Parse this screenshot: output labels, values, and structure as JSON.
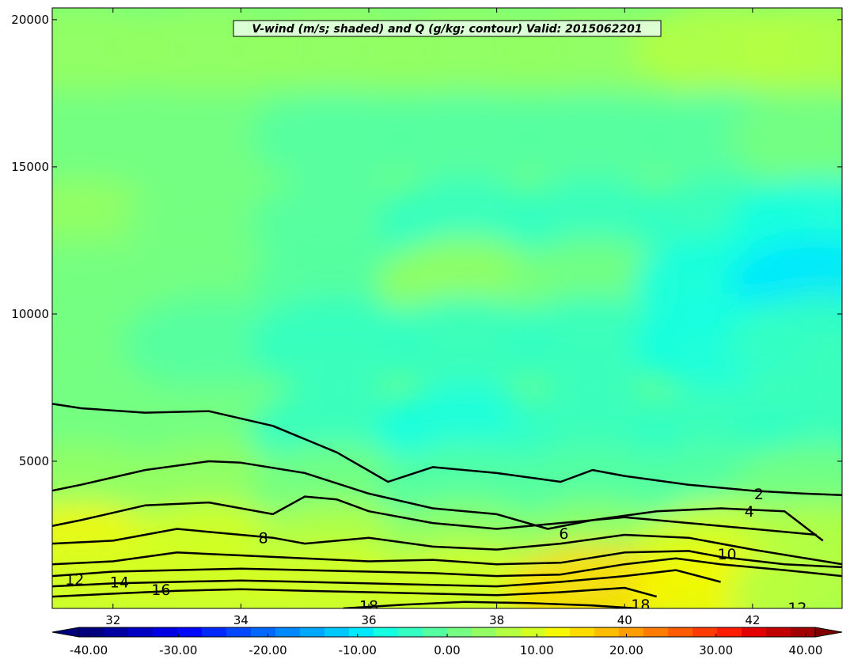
{
  "chart_data": {
    "type": "heatmap",
    "title": "V-wind (m/s; shaded) and Q (g/kg; contour) Valid: 2015062201",
    "xlabel": "",
    "ylabel": "",
    "xlim": [
      31.05,
      43.4
    ],
    "ylim": [
      0,
      20400
    ],
    "x_ticks": [
      "32",
      "34",
      "36",
      "38",
      "40",
      "42"
    ],
    "y_ticks": [
      "5000",
      "10000",
      "15000",
      "20000"
    ],
    "x_tick_values": [
      32,
      34,
      36,
      38,
      40,
      42
    ],
    "y_tick_values": [
      5000,
      10000,
      15000,
      20000
    ],
    "shaded_field": {
      "name": "V-wind (m/s)",
      "approx_rows": [
        {
          "y": 19000,
          "values": [
            3,
            3,
            3,
            4,
            5,
            6,
            7
          ]
        },
        {
          "y": 16000,
          "values": [
            2,
            1,
            -1,
            -2,
            -2,
            -1,
            0
          ]
        },
        {
          "y": 13000,
          "values": [
            4,
            2,
            -2,
            -3,
            -4,
            -5,
            -8
          ]
        },
        {
          "y": 11000,
          "values": [
            2,
            0,
            -1,
            3,
            0,
            -6,
            -10
          ]
        },
        {
          "y": 9000,
          "values": [
            2,
            -2,
            -5,
            -3,
            -4,
            -6,
            -4
          ]
        },
        {
          "y": 6000,
          "values": [
            1,
            0,
            -3,
            -6,
            -4,
            -5,
            -3
          ]
        },
        {
          "y": 4000,
          "values": [
            5,
            4,
            2,
            -1,
            -2,
            -1,
            0
          ]
        },
        {
          "y": 2000,
          "values": [
            12,
            9,
            6,
            4,
            5,
            8,
            6
          ]
        },
        {
          "y": 600,
          "values": [
            10,
            9,
            8,
            10,
            14,
            12,
            7
          ]
        }
      ],
      "x": [
        31.5,
        33.5,
        35.5,
        37.5,
        39.5,
        41.5,
        43
      ]
    },
    "colorbar": {
      "min": -40,
      "max": 40,
      "tick_labels": [
        "-40.00",
        "-30.00",
        "-20.00",
        "-10.00",
        "0.00",
        "10.00",
        "20.00",
        "30.00",
        "40.00"
      ],
      "colors": [
        "#00007f",
        "#0000a0",
        "#0000c1",
        "#0000e2",
        "#0008ff",
        "#0028ff",
        "#0048ff",
        "#0068ff",
        "#0088ff",
        "#00a8ff",
        "#00c8ff",
        "#00e8ff",
        "#14ffe2",
        "#34ffc2",
        "#54ffa2",
        "#74ff82",
        "#94ff62",
        "#b4ff42",
        "#d4ff22",
        "#f4f802",
        "#ffdc00",
        "#ffbc00",
        "#ff9c00",
        "#ff7c00",
        "#ff5c00",
        "#ff3c00",
        "#ff1c00",
        "#e20000",
        "#c10000",
        "#a00000"
      ]
    },
    "contour_levels": [
      "2",
      "4",
      "6",
      "8",
      "10",
      "12",
      "14",
      "16",
      "18"
    ],
    "contours": [
      {
        "level": 2,
        "x": [
          31.05,
          31.5,
          32.5,
          33.5,
          34.5,
          35.5,
          36.3,
          37,
          38,
          39,
          39.5,
          40,
          41,
          42,
          42.8,
          43.4
        ],
        "y": [
          6950,
          6800,
          6650,
          6700,
          6200,
          5300,
          4300,
          4800,
          4600,
          4300,
          4700,
          4500,
          4200,
          4000,
          3900,
          3850
        ]
      },
      {
        "level": 4,
        "x": [
          31.05,
          31.5,
          32.5,
          33.5,
          34,
          35,
          36,
          37,
          38,
          38.8,
          39.5,
          40.5,
          41.5,
          42.5,
          43.1
        ],
        "y": [
          4000,
          4200,
          4700,
          5000,
          4950,
          4600,
          3900,
          3400,
          3200,
          2700,
          3000,
          3300,
          3400,
          3300,
          2300
        ]
      },
      {
        "level": 6,
        "x": [
          31.05,
          31.5,
          32.5,
          33.5,
          34.5,
          35,
          35.5,
          36,
          37,
          38,
          39,
          40,
          41,
          42,
          43
        ],
        "y": [
          2800,
          3000,
          3500,
          3600,
          3200,
          3800,
          3700,
          3300,
          2900,
          2700,
          2900,
          3100,
          2900,
          2700,
          2500
        ]
      },
      {
        "level": 8,
        "x": [
          31.05,
          32,
          33,
          34,
          34.5,
          35,
          36,
          37,
          38,
          39,
          40,
          41,
          42,
          43.4
        ],
        "y": [
          2200,
          2300,
          2700,
          2500,
          2400,
          2200,
          2400,
          2100,
          2000,
          2200,
          2500,
          2400,
          2000,
          1500
        ]
      },
      {
        "level": 10,
        "x": [
          31.05,
          32,
          33,
          34,
          35,
          36,
          37,
          38,
          39,
          40,
          41,
          41.5,
          42.5,
          43.4
        ],
        "y": [
          1500,
          1600,
          1900,
          1800,
          1700,
          1600,
          1650,
          1500,
          1550,
          1900,
          1950,
          1750,
          1500,
          1400
        ]
      },
      {
        "level": 12,
        "x": [
          31.05,
          32,
          33,
          34,
          35,
          36,
          37,
          38,
          39,
          40,
          40.8,
          41.5,
          42.5,
          43.4
        ],
        "y": [
          1100,
          1250,
          1300,
          1350,
          1300,
          1250,
          1200,
          1100,
          1150,
          1500,
          1700,
          1500,
          1300,
          1100
        ]
      },
      {
        "level": 14,
        "x": [
          31.05,
          32,
          33,
          34,
          35,
          36,
          37,
          38,
          39,
          40,
          40.8,
          41.5
        ],
        "y": [
          750,
          850,
          900,
          950,
          900,
          850,
          800,
          750,
          900,
          1100,
          1300,
          900
        ]
      },
      {
        "level": 16,
        "x": [
          31.05,
          32,
          33,
          34,
          35,
          36,
          37,
          38,
          39,
          40,
          40.5
        ],
        "y": [
          400,
          500,
          600,
          650,
          600,
          550,
          500,
          450,
          550,
          700,
          400
        ]
      },
      {
        "level": 18,
        "x": [
          35.6,
          36.5,
          37.5,
          38.5,
          39.5,
          40.2
        ],
        "y": [
          0,
          120,
          220,
          180,
          100,
          0
        ]
      }
    ],
    "contour_label_positions": [
      {
        "text": "2",
        "x": 42.1,
        "y": 3900
      },
      {
        "text": "4",
        "x": 41.95,
        "y": 3300
      },
      {
        "text": "6",
        "x": 39.05,
        "y": 2550
      },
      {
        "text": "8",
        "x": 34.35,
        "y": 2400
      },
      {
        "text": "10",
        "x": 41.6,
        "y": 1850
      },
      {
        "text": "12",
        "x": 31.4,
        "y": 1000
      },
      {
        "text": "14",
        "x": 32.1,
        "y": 900
      },
      {
        "text": "16",
        "x": 32.75,
        "y": 650
      },
      {
        "text": "18",
        "x": 36.0,
        "y": 100
      },
      {
        "text": "18",
        "x": 40.25,
        "y": 130
      },
      {
        "text": "12",
        "x": 42.7,
        "y": 30
      }
    ]
  }
}
